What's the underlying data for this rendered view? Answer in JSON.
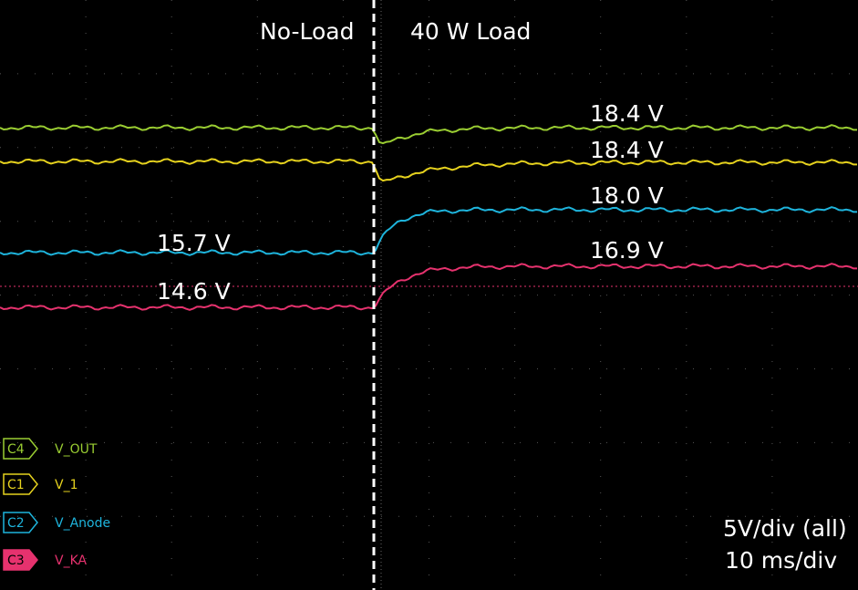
{
  "header": {
    "left_label": "No-Load",
    "right_label": "40 W Load"
  },
  "annotations": [
    "18.4 V",
    "18.4 V",
    "18.0 V",
    "16.9 V",
    "15.7 V",
    "14.6 V"
  ],
  "channels": [
    {
      "badge": "C4",
      "name": "V_OUT",
      "color": "#9acd32"
    },
    {
      "badge": "C1",
      "name": "V_1",
      "color": "#e6d21e"
    },
    {
      "badge": "C2",
      "name": "V_Anode",
      "color": "#1eb4dc"
    },
    {
      "badge": "C3",
      "name": "V_KA",
      "color": "#e6326e"
    }
  ],
  "settings": [
    "5V/div (all)",
    "10 ms/div"
  ]
}
